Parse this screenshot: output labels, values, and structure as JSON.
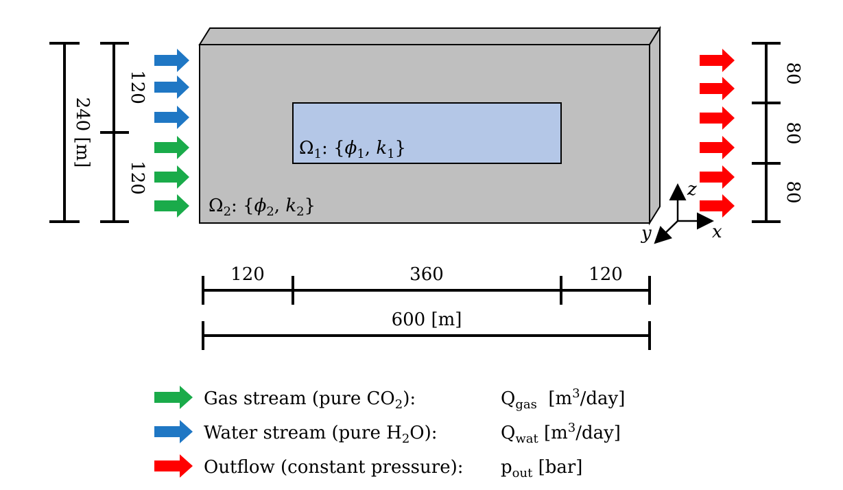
{
  "diagram": {
    "regions": {
      "inner": {
        "symbol": "Ω",
        "sub": "1",
        "props_open": ": {",
        "phi": "ϕ",
        "phi_sub": "1",
        "sep": ", ",
        "k": "k",
        "k_sub": "1",
        "props_close": "}",
        "color": "#b4c7e7"
      },
      "outer": {
        "symbol": "Ω",
        "sub": "2",
        "props_open": ": {",
        "phi": "ϕ",
        "phi_sub": "2",
        "sep": ", ",
        "k": "k",
        "k_sub": "2",
        "props_close": "}",
        "color": "#bfbfbf"
      }
    },
    "left_dims": {
      "total": "240 [m]",
      "upper": "120",
      "lower": "120"
    },
    "right_dims": [
      "80",
      "80",
      "80"
    ],
    "bottom_dims": {
      "segments": [
        "120",
        "360",
        "120"
      ],
      "total": "600 [m]"
    },
    "axes": {
      "x": "x",
      "y": "y",
      "z": "z"
    },
    "arrow_colors": {
      "gas": "#1aab4a",
      "water": "#1f77c4",
      "outflow": "#ff0000"
    }
  },
  "legend": [
    {
      "label_pre": "Gas stream (pure CO",
      "label_sub": "2",
      "label_post": "):",
      "q_main": "Q",
      "q_sub": "gas",
      "q_unit_pre": "  [m",
      "q_unit_sup": "3",
      "q_unit_post": "/day]",
      "color": "#1aab4a",
      "icon": "green-arrow-icon"
    },
    {
      "label_pre": "Water stream (pure H",
      "label_sub": "2",
      "label_post": "O):",
      "q_main": "Q",
      "q_sub": "wat",
      "q_unit_pre": " [m",
      "q_unit_sup": "3",
      "q_unit_post": "/day]",
      "color": "#1f77c4",
      "icon": "blue-arrow-icon"
    },
    {
      "label_pre": "Outflow (constant pressure):",
      "label_sub": "",
      "label_post": "",
      "q_main": "p",
      "q_sub": "out",
      "q_unit_pre": " [bar]",
      "q_unit_sup": "",
      "q_unit_post": "",
      "color": "#ff0000",
      "icon": "red-arrow-icon"
    }
  ]
}
